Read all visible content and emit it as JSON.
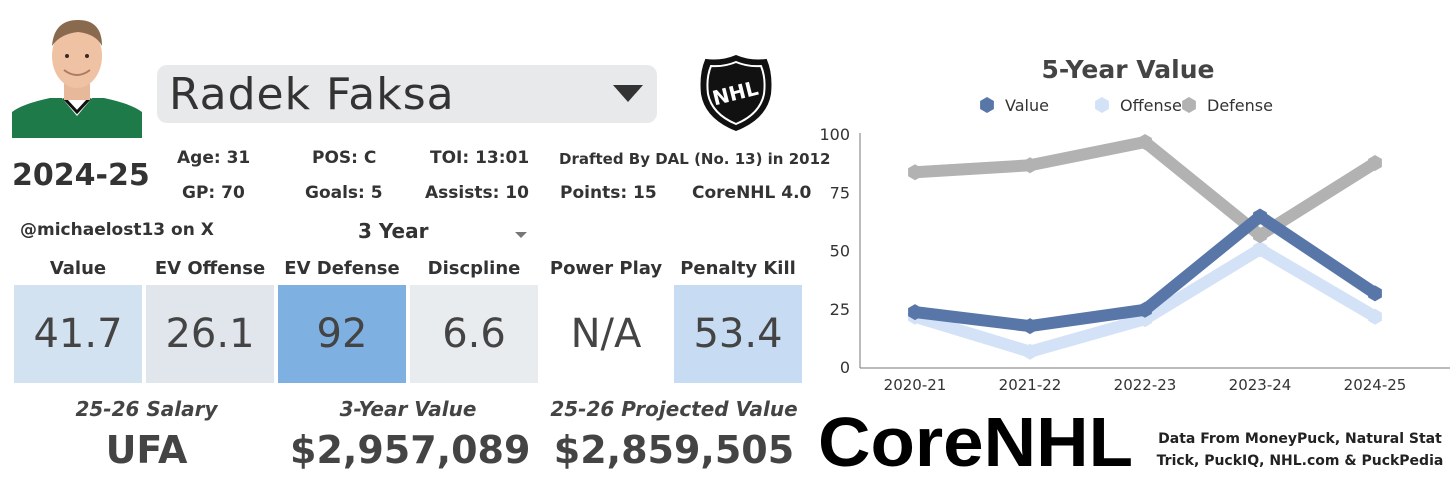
{
  "player": {
    "name": "Radek Faksa",
    "season": "2024-25",
    "age": "Age: 31",
    "pos": "POS: C",
    "toi": "TOI: 13:01",
    "drafted": "Drafted By DAL (No. 13) in 2012",
    "gp": "GP: 70",
    "goals": "Goals: 5",
    "assists": "Assists: 10",
    "points": "Points: 15",
    "version": "CoreNHL 4.0",
    "handle": "@michaelost13 on X"
  },
  "span_select": {
    "value": "3 Year"
  },
  "metrics": [
    {
      "label": "Value",
      "value": "41.7",
      "color": "#d3e2f1"
    },
    {
      "label": "EV Offense",
      "value": "26.1",
      "color": "#e1e6ec"
    },
    {
      "label": "EV Defense",
      "value": "92",
      "color": "#7fb0e2"
    },
    {
      "label": "Discpline",
      "value": "6.6",
      "color": "#e9ecef"
    },
    {
      "label": "Power Play",
      "value": "N/A",
      "color": "#ffffff"
    },
    {
      "label": "Penalty Kill",
      "value": "53.4",
      "color": "#c7dcf2"
    }
  ],
  "bottom": {
    "salary_label": "25-26 Salary",
    "salary_value": "UFA",
    "value3_label": "3-Year Value",
    "value3_value": "$2,957,089",
    "proj_label": "25-26 Projected Value",
    "proj_value": "$2,859,505"
  },
  "chart_data": {
    "type": "line",
    "title": "5-Year Value",
    "categories": [
      "2020-21",
      "2021-22",
      "2022-23",
      "2023-24",
      "2024-25"
    ],
    "ylim": [
      0,
      100
    ],
    "yticks": [
      0,
      25,
      50,
      75,
      100
    ],
    "legend": "top",
    "series": [
      {
        "name": "Value",
        "color": "#5876a8",
        "values": [
          24,
          18,
          25,
          65,
          32
        ]
      },
      {
        "name": "Offense",
        "color": "#d4e2f8",
        "values": [
          22,
          7,
          21,
          51,
          22
        ]
      },
      {
        "name": "Defense",
        "color": "#b2b2b2",
        "values": [
          84,
          87,
          97,
          57,
          88
        ]
      }
    ]
  },
  "brand": {
    "logo_text": "CoreNHL",
    "nhl_text": "NHL"
  },
  "credits": {
    "line1": "Data From MoneyPuck, Natural Stat",
    "line2": "Trick, PuckIQ, NHL.com & PuckPedia"
  }
}
